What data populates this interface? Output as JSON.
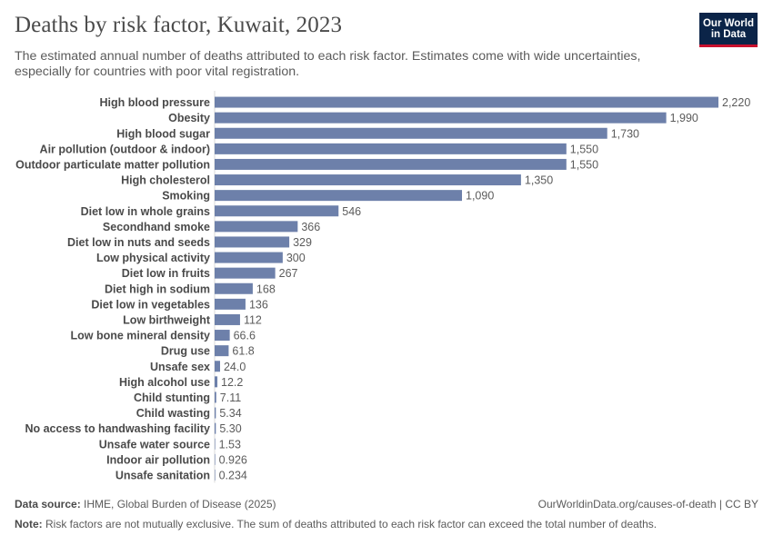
{
  "header": {
    "title": "Deaths by risk factor, Kuwait, 2023",
    "subtitle": "The estimated annual number of deaths attributed to each risk factor. Estimates come with wide uncertainties, especially for countries with poor vital registration."
  },
  "logo": {
    "line1": "Our World",
    "line2": "in Data"
  },
  "colors": {
    "bar": "#6d80aa",
    "label": "#4a4a4a",
    "value": "#5b5b5b",
    "axis": "#dadada"
  },
  "chart_data": {
    "type": "bar",
    "orientation": "horizontal",
    "title": "Deaths by risk factor, Kuwait, 2023",
    "xlabel": "",
    "ylabel": "",
    "xlim": [
      0,
      2220
    ],
    "categories": [
      "High blood pressure",
      "Obesity",
      "High blood sugar",
      "Air pollution (outdoor & indoor)",
      "Outdoor particulate matter pollution",
      "High cholesterol",
      "Smoking",
      "Diet low in whole grains",
      "Secondhand smoke",
      "Diet low in nuts and seeds",
      "Low physical activity",
      "Diet low in fruits",
      "Diet high in sodium",
      "Diet low in vegetables",
      "Low birthweight",
      "Low bone mineral density",
      "Drug use",
      "Unsafe sex",
      "High alcohol use",
      "Child stunting",
      "Child wasting",
      "No access to handwashing facility",
      "Unsafe water source",
      "Indoor air pollution",
      "Unsafe sanitation"
    ],
    "values": [
      2220,
      1990,
      1730,
      1550,
      1550,
      1350,
      1090,
      546,
      366,
      329,
      300,
      267,
      168,
      136,
      112,
      66.6,
      61.8,
      24.0,
      12.2,
      7.11,
      5.34,
      5.3,
      1.53,
      0.926,
      0.234
    ],
    "value_labels": [
      "2,220",
      "1,990",
      "1,730",
      "1,550",
      "1,550",
      "1,350",
      "1,090",
      "546",
      "366",
      "329",
      "300",
      "267",
      "168",
      "136",
      "112",
      "66.6",
      "61.8",
      "24.0",
      "12.2",
      "7.11",
      "5.34",
      "5.30",
      "1.53",
      "0.926",
      "0.234"
    ]
  },
  "footer": {
    "source_label": "Data source:",
    "source_text": "IHME, Global Burden of Disease (2025)",
    "url_text": "OurWorldinData.org/causes-of-death | CC BY",
    "note_label": "Note:",
    "note_text": "Risk factors are not mutually exclusive. The sum of deaths attributed to each risk factor can exceed the total number of deaths."
  }
}
